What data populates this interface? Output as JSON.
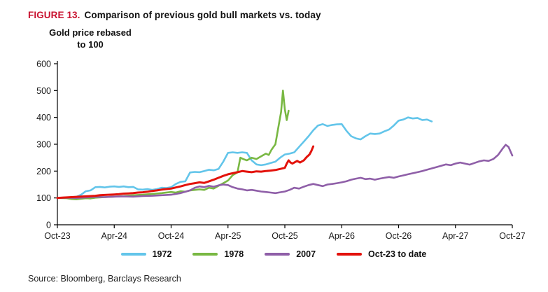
{
  "figure": {
    "label": "FIGURE 13.",
    "label_color": "#C8102E",
    "title": "Comparison of previous gold bull markets vs. today",
    "y_axis_title_line1": "Gold price rebased",
    "y_axis_title_line2": "to 100",
    "source": "Source: Bloomberg, Barclays Research"
  },
  "chart_data": {
    "type": "line",
    "title": "Comparison of previous gold bull markets vs. today",
    "ylabel": "Gold price rebased to 100",
    "x_unit": "months since Oct-23",
    "xlim": [
      0,
      48
    ],
    "ylim": [
      0,
      600
    ],
    "grid": false,
    "legend_position": "bottom",
    "y_ticks": [
      0,
      100,
      200,
      300,
      400,
      500,
      600
    ],
    "x_ticks": [
      {
        "pos": 0,
        "label": "Oct-23"
      },
      {
        "pos": 6,
        "label": "Apr-24"
      },
      {
        "pos": 12,
        "label": "Oct-24"
      },
      {
        "pos": 18,
        "label": "Apr-25"
      },
      {
        "pos": 24,
        "label": "Oct-25"
      },
      {
        "pos": 30,
        "label": "Apr-26"
      },
      {
        "pos": 36,
        "label": "Oct-26"
      },
      {
        "pos": 42,
        "label": "Apr-27"
      },
      {
        "pos": 48,
        "label": "Oct-27"
      }
    ],
    "series": [
      {
        "name": "1972",
        "color": "#63C5EA",
        "width": 2.6,
        "points": [
          [
            0,
            100
          ],
          [
            0.5,
            101
          ],
          [
            1,
            102
          ],
          [
            1.5,
            103
          ],
          [
            2,
            104
          ],
          [
            2.5,
            112
          ],
          [
            3,
            125
          ],
          [
            3.5,
            128
          ],
          [
            4,
            140
          ],
          [
            4.5,
            141
          ],
          [
            5,
            139
          ],
          [
            5.5,
            142
          ],
          [
            6,
            143
          ],
          [
            6.5,
            141
          ],
          [
            7,
            143
          ],
          [
            7.5,
            140
          ],
          [
            8,
            141
          ],
          [
            8.5,
            132
          ],
          [
            9,
            131
          ],
          [
            9.5,
            133
          ],
          [
            10,
            130
          ],
          [
            10.5,
            133
          ],
          [
            11,
            138
          ],
          [
            11.5,
            137
          ],
          [
            12,
            140
          ],
          [
            12.5,
            152
          ],
          [
            13,
            160
          ],
          [
            13.5,
            162
          ],
          [
            14,
            195
          ],
          [
            14.5,
            197
          ],
          [
            15,
            196
          ],
          [
            15.5,
            200
          ],
          [
            16,
            205
          ],
          [
            16.5,
            203
          ],
          [
            17,
            208
          ],
          [
            17.5,
            235
          ],
          [
            18,
            268
          ],
          [
            18.5,
            270
          ],
          [
            19,
            268
          ],
          [
            19.5,
            270
          ],
          [
            20,
            268
          ],
          [
            20.5,
            240
          ],
          [
            21,
            225
          ],
          [
            21.5,
            222
          ],
          [
            22,
            225
          ],
          [
            22.5,
            230
          ],
          [
            23,
            235
          ],
          [
            23.5,
            250
          ],
          [
            24,
            262
          ],
          [
            24.5,
            265
          ],
          [
            25,
            270
          ],
          [
            25.5,
            290
          ],
          [
            26,
            310
          ],
          [
            26.5,
            330
          ],
          [
            27,
            352
          ],
          [
            27.5,
            370
          ],
          [
            28,
            375
          ],
          [
            28.5,
            368
          ],
          [
            29,
            372
          ],
          [
            29.5,
            374
          ],
          [
            30,
            375
          ],
          [
            30.5,
            350
          ],
          [
            31,
            330
          ],
          [
            31.5,
            322
          ],
          [
            32,
            318
          ],
          [
            32.5,
            330
          ],
          [
            33,
            340
          ],
          [
            33.5,
            338
          ],
          [
            34,
            340
          ],
          [
            34.5,
            348
          ],
          [
            35,
            355
          ],
          [
            35.5,
            370
          ],
          [
            36,
            388
          ],
          [
            36.5,
            392
          ],
          [
            37,
            400
          ],
          [
            37.5,
            396
          ],
          [
            38,
            398
          ],
          [
            38.5,
            390
          ],
          [
            39,
            392
          ],
          [
            39.5,
            385
          ]
        ]
      },
      {
        "name": "1978",
        "color": "#79B843",
        "width": 2.6,
        "points": [
          [
            0,
            100
          ],
          [
            1,
            99
          ],
          [
            1.5,
            96
          ],
          [
            2,
            95
          ],
          [
            2.5,
            97
          ],
          [
            3,
            99
          ],
          [
            3.5,
            98
          ],
          [
            4,
            101
          ],
          [
            5,
            103
          ],
          [
            6,
            105
          ],
          [
            7,
            107
          ],
          [
            8,
            110
          ],
          [
            9,
            112
          ],
          [
            10,
            115
          ],
          [
            11,
            118
          ],
          [
            12,
            122
          ],
          [
            12.5,
            120
          ],
          [
            13,
            125
          ],
          [
            13.5,
            123
          ],
          [
            14,
            128
          ],
          [
            15,
            132
          ],
          [
            15.5,
            130
          ],
          [
            16,
            138
          ],
          [
            16.5,
            135
          ],
          [
            17,
            145
          ],
          [
            17.5,
            155
          ],
          [
            18,
            165
          ],
          [
            18.5,
            185
          ],
          [
            19,
            195
          ],
          [
            19.3,
            250
          ],
          [
            19.6,
            245
          ],
          [
            20,
            240
          ],
          [
            20.5,
            250
          ],
          [
            21,
            245
          ],
          [
            21.5,
            255
          ],
          [
            22,
            265
          ],
          [
            22.3,
            260
          ],
          [
            22.6,
            280
          ],
          [
            23,
            300
          ],
          [
            23.3,
            360
          ],
          [
            23.6,
            420
          ],
          [
            23.8,
            500
          ],
          [
            24,
            430
          ],
          [
            24.2,
            390
          ],
          [
            24.4,
            425
          ]
        ]
      },
      {
        "name": "2007",
        "color": "#8F5FA8",
        "width": 2.6,
        "points": [
          [
            0,
            100
          ],
          [
            1,
            101
          ],
          [
            2,
            100
          ],
          [
            3,
            102
          ],
          [
            4,
            104
          ],
          [
            5,
            103
          ],
          [
            6,
            105
          ],
          [
            7,
            106
          ],
          [
            8,
            105
          ],
          [
            9,
            107
          ],
          [
            10,
            108
          ],
          [
            11,
            110
          ],
          [
            12,
            112
          ],
          [
            13,
            118
          ],
          [
            14,
            128
          ],
          [
            14.5,
            138
          ],
          [
            15,
            143
          ],
          [
            15.5,
            140
          ],
          [
            16,
            145
          ],
          [
            16.5,
            142
          ],
          [
            17,
            147
          ],
          [
            17.5,
            150
          ],
          [
            18,
            148
          ],
          [
            18.5,
            140
          ],
          [
            19,
            135
          ],
          [
            19.5,
            132
          ],
          [
            20,
            128
          ],
          [
            20.5,
            130
          ],
          [
            21,
            127
          ],
          [
            21.5,
            124
          ],
          [
            22,
            122
          ],
          [
            22.5,
            120
          ],
          [
            23,
            118
          ],
          [
            23.5,
            121
          ],
          [
            24,
            124
          ],
          [
            24.5,
            130
          ],
          [
            25,
            138
          ],
          [
            25.5,
            135
          ],
          [
            26,
            142
          ],
          [
            26.5,
            148
          ],
          [
            27,
            152
          ],
          [
            27.5,
            148
          ],
          [
            28,
            144
          ],
          [
            28.5,
            150
          ],
          [
            29,
            152
          ],
          [
            29.5,
            155
          ],
          [
            30,
            158
          ],
          [
            30.5,
            162
          ],
          [
            31,
            168
          ],
          [
            31.5,
            172
          ],
          [
            32,
            175
          ],
          [
            32.5,
            170
          ],
          [
            33,
            172
          ],
          [
            33.5,
            168
          ],
          [
            34,
            172
          ],
          [
            34.5,
            175
          ],
          [
            35,
            178
          ],
          [
            35.5,
            175
          ],
          [
            36,
            180
          ],
          [
            36.5,
            184
          ],
          [
            37,
            188
          ],
          [
            37.5,
            192
          ],
          [
            38,
            196
          ],
          [
            38.5,
            200
          ],
          [
            39,
            205
          ],
          [
            39.5,
            210
          ],
          [
            40,
            215
          ],
          [
            40.5,
            220
          ],
          [
            41,
            225
          ],
          [
            41.5,
            222
          ],
          [
            42,
            228
          ],
          [
            42.5,
            232
          ],
          [
            43,
            228
          ],
          [
            43.5,
            224
          ],
          [
            44,
            230
          ],
          [
            44.5,
            236
          ],
          [
            45,
            240
          ],
          [
            45.5,
            238
          ],
          [
            46,
            245
          ],
          [
            46.5,
            260
          ],
          [
            47,
            285
          ],
          [
            47.3,
            298
          ],
          [
            47.6,
            290
          ],
          [
            48,
            258
          ]
        ]
      },
      {
        "name": "Oct-23 to date",
        "color": "#E3120B",
        "width": 3,
        "points": [
          [
            0,
            100
          ],
          [
            0.5,
            101
          ],
          [
            1,
            102
          ],
          [
            1.5,
            103
          ],
          [
            2,
            104
          ],
          [
            2.5,
            105
          ],
          [
            3,
            106
          ],
          [
            3.5,
            107
          ],
          [
            4,
            108
          ],
          [
            4.5,
            110
          ],
          [
            5,
            111
          ],
          [
            6,
            113
          ],
          [
            6.5,
            114
          ],
          [
            7,
            116
          ],
          [
            7.5,
            117
          ],
          [
            8,
            118
          ],
          [
            8.5,
            120
          ],
          [
            9,
            121
          ],
          [
            9.5,
            123
          ],
          [
            10,
            126
          ],
          [
            10.5,
            128
          ],
          [
            11,
            131
          ],
          [
            11.5,
            133
          ],
          [
            12,
            135
          ],
          [
            12.5,
            139
          ],
          [
            13,
            143
          ],
          [
            13.5,
            148
          ],
          [
            14,
            152
          ],
          [
            14.5,
            155
          ],
          [
            15,
            158
          ],
          [
            15.5,
            156
          ],
          [
            16,
            162
          ],
          [
            16.5,
            168
          ],
          [
            17,
            175
          ],
          [
            17.5,
            182
          ],
          [
            18,
            188
          ],
          [
            18.5,
            192
          ],
          [
            19,
            196
          ],
          [
            19.5,
            200
          ],
          [
            20,
            198
          ],
          [
            20.5,
            196
          ],
          [
            21,
            199
          ],
          [
            21.5,
            198
          ],
          [
            22,
            200
          ],
          [
            22.5,
            202
          ],
          [
            23,
            204
          ],
          [
            23.5,
            208
          ],
          [
            24,
            212
          ],
          [
            24.2,
            228
          ],
          [
            24.4,
            240
          ],
          [
            24.6,
            232
          ],
          [
            24.8,
            228
          ],
          [
            25,
            232
          ],
          [
            25.3,
            238
          ],
          [
            25.6,
            232
          ],
          [
            26,
            240
          ],
          [
            26.3,
            252
          ],
          [
            26.6,
            262
          ],
          [
            26.8,
            275
          ],
          [
            27,
            292
          ]
        ]
      }
    ]
  }
}
